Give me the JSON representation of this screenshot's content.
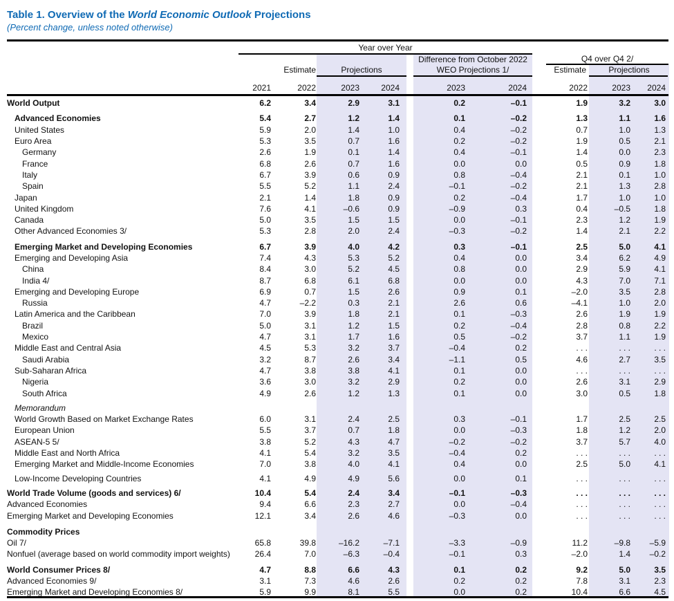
{
  "title": {
    "prefix": "Table 1. Overview of the ",
    "italic_part": "World Economic Outlook",
    "suffix": " Projections"
  },
  "subtitle": "(Percent change, unless noted otherwise)",
  "colors": {
    "title_blue": "#0f6ab4",
    "band_lavender": "#e4e4f4",
    "rule_black": "#000000"
  },
  "header": {
    "group_yoy": "Year over Year",
    "group_q4": "Q4 over Q4 2/",
    "estimate": "Estimate",
    "projections": "Projections",
    "difference_line1": "Difference from October 2022",
    "difference_line2": "WEO Projections 1/",
    "years": [
      "2021",
      "2022",
      "2023",
      "2024",
      "2023",
      "2024",
      "2022",
      "2023",
      "2024"
    ]
  },
  "table": {
    "columns": [
      "2021",
      "2022",
      "2023",
      "2024",
      "Diff 2023",
      "Diff 2024",
      "Q4 2022",
      "Q4 2023",
      "Q4 2024"
    ],
    "rows": [
      {
        "label": "World Output",
        "indent": 0,
        "bold": true,
        "italic": false,
        "gap": 0,
        "values": [
          "6.2",
          "3.4",
          "2.9",
          "3.1",
          "0.2",
          "–0.1",
          "1.9",
          "3.2",
          "3.0"
        ]
      },
      {
        "label": "Advanced Economies",
        "indent": 1,
        "bold": true,
        "italic": false,
        "gap": 6,
        "values": [
          "5.4",
          "2.7",
          "1.2",
          "1.4",
          "0.1",
          "–0.2",
          "1.3",
          "1.1",
          "1.6"
        ]
      },
      {
        "label": "United States",
        "indent": 1,
        "bold": false,
        "italic": false,
        "gap": 0,
        "values": [
          "5.9",
          "2.0",
          "1.4",
          "1.0",
          "0.4",
          "–0.2",
          "0.7",
          "1.0",
          "1.3"
        ]
      },
      {
        "label": "Euro Area",
        "indent": 1,
        "bold": false,
        "italic": false,
        "gap": 0,
        "values": [
          "5.3",
          "3.5",
          "0.7",
          "1.6",
          "0.2",
          "–0.2",
          "1.9",
          "0.5",
          "2.1"
        ]
      },
      {
        "label": "Germany",
        "indent": 2,
        "bold": false,
        "italic": false,
        "gap": 0,
        "values": [
          "2.6",
          "1.9",
          "0.1",
          "1.4",
          "0.4",
          "–0.1",
          "1.4",
          "0.0",
          "2.3"
        ]
      },
      {
        "label": "France",
        "indent": 2,
        "bold": false,
        "italic": false,
        "gap": 0,
        "values": [
          "6.8",
          "2.6",
          "0.7",
          "1.6",
          "0.0",
          "0.0",
          "0.5",
          "0.9",
          "1.8"
        ]
      },
      {
        "label": "Italy",
        "indent": 2,
        "bold": false,
        "italic": false,
        "gap": 0,
        "values": [
          "6.7",
          "3.9",
          "0.6",
          "0.9",
          "0.8",
          "–0.4",
          "2.1",
          "0.1",
          "1.0"
        ]
      },
      {
        "label": "Spain",
        "indent": 2,
        "bold": false,
        "italic": false,
        "gap": 0,
        "values": [
          "5.5",
          "5.2",
          "1.1",
          "2.4",
          "–0.1",
          "–0.2",
          "2.1",
          "1.3",
          "2.8"
        ]
      },
      {
        "label": "Japan",
        "indent": 1,
        "bold": false,
        "italic": false,
        "gap": 0,
        "values": [
          "2.1",
          "1.4",
          "1.8",
          "0.9",
          "0.2",
          "–0.4",
          "1.7",
          "1.0",
          "1.0"
        ]
      },
      {
        "label": "United Kingdom",
        "indent": 1,
        "bold": false,
        "italic": false,
        "gap": 0,
        "values": [
          "7.6",
          "4.1",
          "–0.6",
          "0.9",
          "–0.9",
          "0.3",
          "0.4",
          "–0.5",
          "1.8"
        ]
      },
      {
        "label": "Canada",
        "indent": 1,
        "bold": false,
        "italic": false,
        "gap": 0,
        "values": [
          "5.0",
          "3.5",
          "1.5",
          "1.5",
          "0.0",
          "–0.1",
          "2.3",
          "1.2",
          "1.9"
        ]
      },
      {
        "label": "Other Advanced Economies 3/",
        "indent": 1,
        "bold": false,
        "italic": false,
        "gap": 0,
        "values": [
          "5.3",
          "2.8",
          "2.0",
          "2.4",
          "–0.3",
          "–0.2",
          "1.4",
          "2.1",
          "2.2"
        ]
      },
      {
        "label": "Emerging Market and Developing Economies",
        "indent": 1,
        "bold": true,
        "italic": false,
        "gap": 6,
        "values": [
          "6.7",
          "3.9",
          "4.0",
          "4.2",
          "0.3",
          "–0.1",
          "2.5",
          "5.0",
          "4.1"
        ]
      },
      {
        "label": "Emerging and Developing Asia",
        "indent": 1,
        "bold": false,
        "italic": false,
        "gap": 0,
        "values": [
          "7.4",
          "4.3",
          "5.3",
          "5.2",
          "0.4",
          "0.0",
          "3.4",
          "6.2",
          "4.9"
        ]
      },
      {
        "label": "China",
        "indent": 2,
        "bold": false,
        "italic": false,
        "gap": 0,
        "values": [
          "8.4",
          "3.0",
          "5.2",
          "4.5",
          "0.8",
          "0.0",
          "2.9",
          "5.9",
          "4.1"
        ]
      },
      {
        "label": "India 4/",
        "indent": 2,
        "bold": false,
        "italic": false,
        "gap": 0,
        "values": [
          "8.7",
          "6.8",
          "6.1",
          "6.8",
          "0.0",
          "0.0",
          "4.3",
          "7.0",
          "7.1"
        ]
      },
      {
        "label": "Emerging and Developing Europe",
        "indent": 1,
        "bold": false,
        "italic": false,
        "gap": 0,
        "values": [
          "6.9",
          "0.7",
          "1.5",
          "2.6",
          "0.9",
          "0.1",
          "–2.0",
          "3.5",
          "2.8"
        ]
      },
      {
        "label": "Russia",
        "indent": 2,
        "bold": false,
        "italic": false,
        "gap": 0,
        "values": [
          "4.7",
          "–2.2",
          "0.3",
          "2.1",
          "2.6",
          "0.6",
          "–4.1",
          "1.0",
          "2.0"
        ]
      },
      {
        "label": "Latin America and the Caribbean",
        "indent": 1,
        "bold": false,
        "italic": false,
        "gap": 0,
        "values": [
          "7.0",
          "3.9",
          "1.8",
          "2.1",
          "0.1",
          "–0.3",
          "2.6",
          "1.9",
          "1.9"
        ]
      },
      {
        "label": "Brazil",
        "indent": 2,
        "bold": false,
        "italic": false,
        "gap": 0,
        "values": [
          "5.0",
          "3.1",
          "1.2",
          "1.5",
          "0.2",
          "–0.4",
          "2.8",
          "0.8",
          "2.2"
        ]
      },
      {
        "label": "Mexico",
        "indent": 2,
        "bold": false,
        "italic": false,
        "gap": 0,
        "values": [
          "4.7",
          "3.1",
          "1.7",
          "1.6",
          "0.5",
          "–0.2",
          "3.7",
          "1.1",
          "1.9"
        ]
      },
      {
        "label": "Middle East and Central Asia",
        "indent": 1,
        "bold": false,
        "italic": false,
        "gap": 0,
        "values": [
          "4.5",
          "5.3",
          "3.2",
          "3.7",
          "–0.4",
          "0.2",
          ". . .",
          ". . .",
          ". . ."
        ]
      },
      {
        "label": "Saudi Arabia",
        "indent": 2,
        "bold": false,
        "italic": false,
        "gap": 0,
        "values": [
          "3.2",
          "8.7",
          "2.6",
          "3.4",
          "–1.1",
          "0.5",
          "4.6",
          "2.7",
          "3.5"
        ]
      },
      {
        "label": "Sub-Saharan Africa",
        "indent": 1,
        "bold": false,
        "italic": false,
        "gap": 0,
        "values": [
          "4.7",
          "3.8",
          "3.8",
          "4.1",
          "0.1",
          "0.0",
          ". . .",
          ". . .",
          ". . ."
        ]
      },
      {
        "label": "Nigeria",
        "indent": 2,
        "bold": false,
        "italic": false,
        "gap": 0,
        "values": [
          "3.6",
          "3.0",
          "3.2",
          "2.9",
          "0.2",
          "0.0",
          "2.6",
          "3.1",
          "2.9"
        ]
      },
      {
        "label": "South Africa",
        "indent": 2,
        "bold": false,
        "italic": false,
        "gap": 0,
        "values": [
          "4.9",
          "2.6",
          "1.2",
          "1.3",
          "0.1",
          "0.0",
          "3.0",
          "0.5",
          "1.8"
        ]
      },
      {
        "label": "Memorandum",
        "indent": 1,
        "bold": false,
        "italic": true,
        "gap": 5,
        "values": [
          "",
          "",
          "",
          "",
          "",
          "",
          "",
          "",
          ""
        ]
      },
      {
        "label": "World Growth Based on Market Exchange Rates",
        "indent": 1,
        "bold": false,
        "italic": false,
        "gap": 0,
        "values": [
          "6.0",
          "3.1",
          "2.4",
          "2.5",
          "0.3",
          "–0.1",
          "1.7",
          "2.5",
          "2.5"
        ]
      },
      {
        "label": "European Union",
        "indent": 1,
        "bold": false,
        "italic": false,
        "gap": 0,
        "values": [
          "5.5",
          "3.7",
          "0.7",
          "1.8",
          "0.0",
          "–0.3",
          "1.8",
          "1.2",
          "2.0"
        ]
      },
      {
        "label": "ASEAN-5 5/",
        "indent": 1,
        "bold": false,
        "italic": false,
        "gap": 0,
        "values": [
          "3.8",
          "5.2",
          "4.3",
          "4.7",
          "–0.2",
          "–0.2",
          "3.7",
          "5.7",
          "4.0"
        ]
      },
      {
        "label": "Middle East and North Africa",
        "indent": 1,
        "bold": false,
        "italic": false,
        "gap": 0,
        "values": [
          "4.1",
          "5.4",
          "3.2",
          "3.5",
          "–0.4",
          "0.2",
          ". . .",
          ". . .",
          ". . ."
        ]
      },
      {
        "label": "Emerging Market and Middle-Income Economies",
        "indent": 1,
        "bold": false,
        "italic": false,
        "gap": 0,
        "values": [
          "7.0",
          "3.8",
          "4.0",
          "4.1",
          "0.4",
          "0.0",
          "2.5",
          "5.0",
          "4.1"
        ]
      },
      {
        "label": "Low-Income Developing Countries",
        "indent": 1,
        "bold": false,
        "italic": false,
        "gap": 4,
        "values": [
          "4.1",
          "4.9",
          "4.9",
          "5.6",
          "0.0",
          "0.1",
          ". . .",
          ". . .",
          ". . ."
        ]
      },
      {
        "label": "World Trade Volume (goods and services) 6/",
        "indent": 0,
        "bold": true,
        "italic": false,
        "gap": 5,
        "values": [
          "10.4",
          "5.4",
          "2.4",
          "3.4",
          "–0.1",
          "–0.3",
          ". . .",
          ". . .",
          ". . ."
        ]
      },
      {
        "label": "Advanced Economies",
        "indent": 0,
        "bold": false,
        "italic": false,
        "gap": 0,
        "values": [
          "9.4",
          "6.6",
          "2.3",
          "2.7",
          "0.0",
          "–0.4",
          ". . .",
          ". . .",
          ". . ."
        ]
      },
      {
        "label": "Emerging Market and Developing Economies",
        "indent": 0,
        "bold": false,
        "italic": false,
        "gap": 0,
        "values": [
          "12.1",
          "3.4",
          "2.6",
          "4.6",
          "–0.3",
          "0.0",
          ". . .",
          ". . .",
          ". . ."
        ]
      },
      {
        "label": "Commodity Prices",
        "indent": 0,
        "bold": true,
        "italic": false,
        "gap": 7,
        "values": [
          "",
          "",
          "",
          "",
          "",
          "",
          "",
          "",
          ""
        ]
      },
      {
        "label": "Oil 7/",
        "indent": 0,
        "bold": false,
        "italic": false,
        "gap": 0,
        "values": [
          "65.8",
          "39.8",
          "–16.2",
          "–7.1",
          "–3.3",
          "–0.9",
          "11.2",
          "–9.8",
          "–5.9"
        ]
      },
      {
        "label": "Nonfuel (average based on world commodity import weights)",
        "indent": 0,
        "bold": false,
        "italic": false,
        "gap": 0,
        "values": [
          "26.4",
          "7.0",
          "–6.3",
          "–0.4",
          "–0.1",
          "0.3",
          "–2.0",
          "1.4",
          "–0.2"
        ]
      },
      {
        "label": "World Consumer Prices 8/",
        "indent": 0,
        "bold": true,
        "italic": false,
        "gap": 6,
        "values": [
          "4.7",
          "8.8",
          "6.6",
          "4.3",
          "0.1",
          "0.2",
          "9.2",
          "5.0",
          "3.5"
        ]
      },
      {
        "label": "Advanced Economies 9/",
        "indent": 0,
        "bold": false,
        "italic": false,
        "gap": 0,
        "values": [
          "3.1",
          "7.3",
          "4.6",
          "2.6",
          "0.2",
          "0.2",
          "7.8",
          "3.1",
          "2.3"
        ]
      },
      {
        "label": "Emerging Market and Developing Economies 8/",
        "indent": 0,
        "bold": false,
        "italic": false,
        "gap": 0,
        "values": [
          "5.9",
          "9.9",
          "8.1",
          "5.5",
          "0.0",
          "0.2",
          "10.4",
          "6.6",
          "4.5"
        ]
      }
    ]
  }
}
